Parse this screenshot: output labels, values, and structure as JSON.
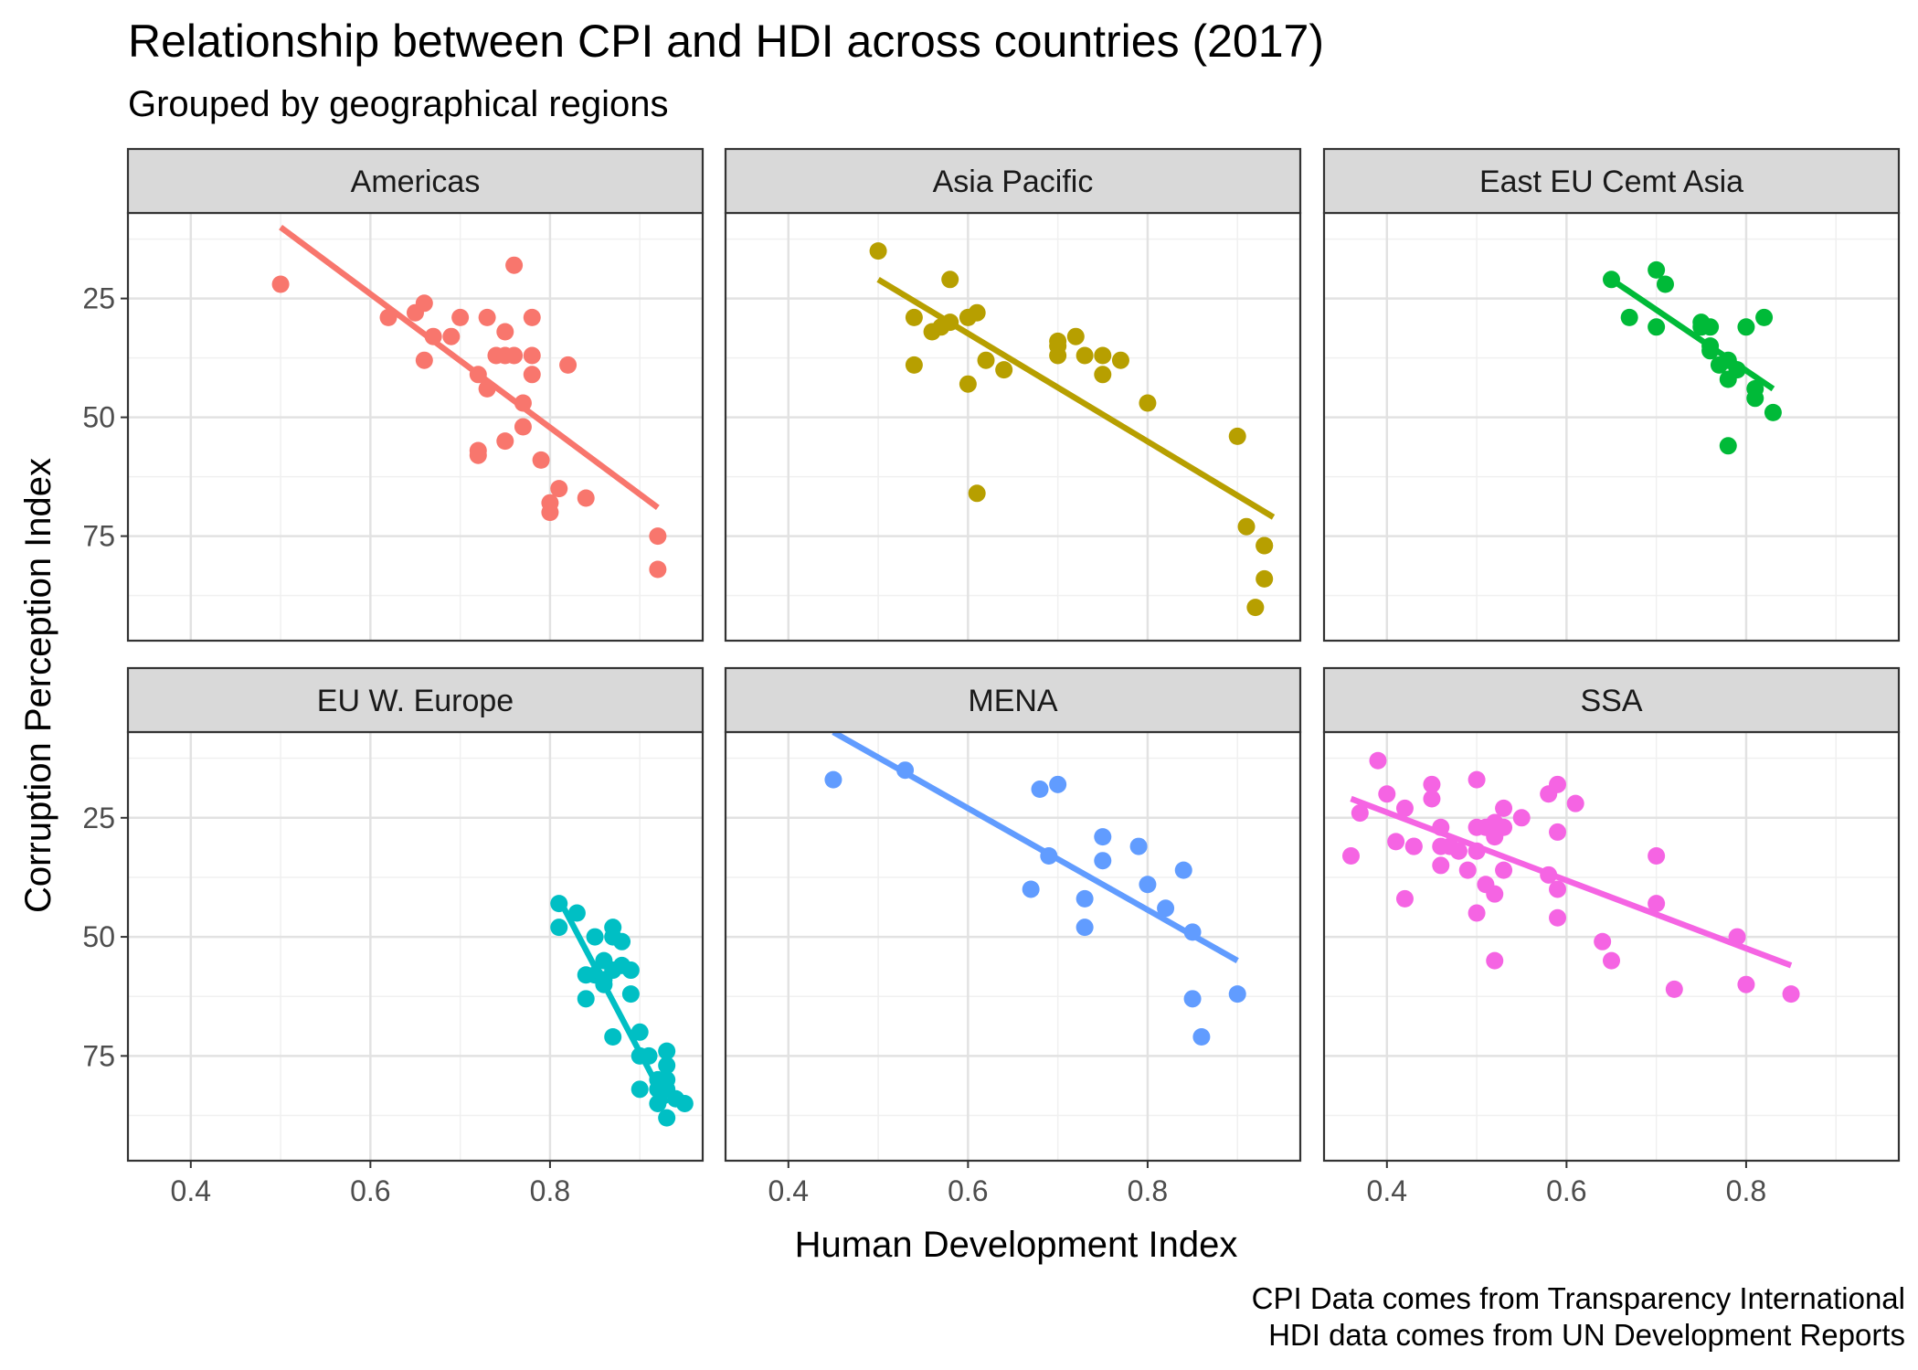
{
  "chart_data": {
    "type": "scatter",
    "title": "Relationship between CPI and HDI across countries (2017)",
    "subtitle": "Grouped by geographical regions",
    "xlabel": "Human Development Index",
    "ylabel": "Corruption Perception Index",
    "caption": [
      "CPI Data comes from Transparency International",
      "HDI data comes from UN Development Reports"
    ],
    "xlim": [
      0.33,
      0.97
    ],
    "ylim": [
      7,
      97
    ],
    "y_reversed": true,
    "x_ticks": [
      0.4,
      0.6,
      0.8
    ],
    "x_tick_labels": [
      "0.4",
      "0.6",
      "0.8"
    ],
    "y_ticks": [
      25,
      50,
      75
    ],
    "y_tick_labels": [
      "25",
      "50",
      "75"
    ],
    "grid": true,
    "facets": [
      {
        "name": "Americas",
        "color": "#F8766D",
        "line": [
          [
            0.5,
            10
          ],
          [
            0.92,
            69
          ]
        ],
        "points": [
          [
            0.5,
            22
          ],
          [
            0.62,
            29
          ],
          [
            0.65,
            28
          ],
          [
            0.66,
            26
          ],
          [
            0.66,
            38
          ],
          [
            0.67,
            33
          ],
          [
            0.69,
            33
          ],
          [
            0.7,
            29
          ],
          [
            0.72,
            41
          ],
          [
            0.72,
            57
          ],
          [
            0.72,
            58
          ],
          [
            0.73,
            44
          ],
          [
            0.73,
            29
          ],
          [
            0.74,
            37
          ],
          [
            0.75,
            37
          ],
          [
            0.75,
            55
          ],
          [
            0.75,
            32
          ],
          [
            0.76,
            37
          ],
          [
            0.76,
            18
          ],
          [
            0.77,
            47
          ],
          [
            0.77,
            52
          ],
          [
            0.78,
            41
          ],
          [
            0.78,
            29
          ],
          [
            0.78,
            37
          ],
          [
            0.79,
            59
          ],
          [
            0.8,
            68
          ],
          [
            0.8,
            70
          ],
          [
            0.81,
            65
          ],
          [
            0.82,
            39
          ],
          [
            0.84,
            67
          ],
          [
            0.92,
            75
          ],
          [
            0.92,
            82
          ]
        ]
      },
      {
        "name": "Asia Pacific",
        "color": "#B79F00",
        "line": [
          [
            0.5,
            21
          ],
          [
            0.94,
            71
          ]
        ],
        "points": [
          [
            0.5,
            15
          ],
          [
            0.54,
            29
          ],
          [
            0.54,
            39
          ],
          [
            0.56,
            32
          ],
          [
            0.57,
            31
          ],
          [
            0.58,
            30
          ],
          [
            0.58,
            21
          ],
          [
            0.6,
            29
          ],
          [
            0.6,
            43
          ],
          [
            0.61,
            28
          ],
          [
            0.61,
            66
          ],
          [
            0.62,
            38
          ],
          [
            0.64,
            40
          ],
          [
            0.7,
            37
          ],
          [
            0.7,
            35
          ],
          [
            0.7,
            34
          ],
          [
            0.72,
            33
          ],
          [
            0.73,
            37
          ],
          [
            0.75,
            41
          ],
          [
            0.75,
            37
          ],
          [
            0.77,
            38
          ],
          [
            0.8,
            47
          ],
          [
            0.9,
            54
          ],
          [
            0.91,
            73
          ],
          [
            0.93,
            77
          ],
          [
            0.93,
            84
          ],
          [
            0.93,
            77
          ],
          [
            0.92,
            90
          ]
        ]
      },
      {
        "name": "East EU Cemt Asia",
        "color": "#00BA38",
        "line": [
          [
            0.65,
            21
          ],
          [
            0.83,
            44
          ]
        ],
        "points": [
          [
            0.65,
            21
          ],
          [
            0.67,
            29
          ],
          [
            0.7,
            31
          ],
          [
            0.7,
            19
          ],
          [
            0.71,
            22
          ],
          [
            0.75,
            30
          ],
          [
            0.75,
            31
          ],
          [
            0.76,
            35
          ],
          [
            0.76,
            36
          ],
          [
            0.76,
            31
          ],
          [
            0.77,
            39
          ],
          [
            0.78,
            38
          ],
          [
            0.78,
            42
          ],
          [
            0.79,
            40
          ],
          [
            0.78,
            56
          ],
          [
            0.8,
            31
          ],
          [
            0.81,
            44
          ],
          [
            0.81,
            46
          ],
          [
            0.82,
            29
          ],
          [
            0.83,
            49
          ]
        ]
      },
      {
        "name": "EU W. Europe",
        "color": "#00BFC4",
        "line": [
          [
            0.81,
            42
          ],
          [
            0.93,
            85
          ]
        ],
        "points": [
          [
            0.81,
            43
          ],
          [
            0.81,
            48
          ],
          [
            0.83,
            45
          ],
          [
            0.84,
            58
          ],
          [
            0.84,
            63
          ],
          [
            0.85,
            50
          ],
          [
            0.85,
            58
          ],
          [
            0.86,
            59
          ],
          [
            0.86,
            55
          ],
          [
            0.86,
            60
          ],
          [
            0.87,
            48
          ],
          [
            0.87,
            71
          ],
          [
            0.87,
            57
          ],
          [
            0.87,
            50
          ],
          [
            0.88,
            51
          ],
          [
            0.88,
            56
          ],
          [
            0.89,
            57
          ],
          [
            0.89,
            62
          ],
          [
            0.9,
            70
          ],
          [
            0.9,
            75
          ],
          [
            0.9,
            82
          ],
          [
            0.91,
            75
          ],
          [
            0.92,
            85
          ],
          [
            0.92,
            82
          ],
          [
            0.92,
            80
          ],
          [
            0.93,
            77
          ],
          [
            0.93,
            80
          ],
          [
            0.93,
            74
          ],
          [
            0.93,
            88
          ],
          [
            0.93,
            82
          ],
          [
            0.94,
            84
          ],
          [
            0.95,
            85
          ]
        ]
      },
      {
        "name": "MENA",
        "color": "#619CFF",
        "line": [
          [
            0.45,
            7
          ],
          [
            0.9,
            55
          ]
        ],
        "points": [
          [
            0.45,
            17
          ],
          [
            0.53,
            15
          ],
          [
            0.67,
            40
          ],
          [
            0.68,
            19
          ],
          [
            0.69,
            33
          ],
          [
            0.7,
            18
          ],
          [
            0.73,
            42
          ],
          [
            0.73,
            48
          ],
          [
            0.75,
            34
          ],
          [
            0.75,
            29
          ],
          [
            0.79,
            31
          ],
          [
            0.8,
            39
          ],
          [
            0.82,
            44
          ],
          [
            0.84,
            36
          ],
          [
            0.85,
            49
          ],
          [
            0.85,
            63
          ],
          [
            0.86,
            71
          ],
          [
            0.9,
            62
          ]
        ]
      },
      {
        "name": "SSA",
        "color": "#F564E3",
        "line": [
          [
            0.36,
            21
          ],
          [
            0.85,
            56
          ]
        ],
        "points": [
          [
            0.36,
            33
          ],
          [
            0.37,
            24
          ],
          [
            0.39,
            13
          ],
          [
            0.4,
            20
          ],
          [
            0.41,
            30
          ],
          [
            0.42,
            23
          ],
          [
            0.42,
            42
          ],
          [
            0.43,
            31
          ],
          [
            0.43,
            31
          ],
          [
            0.45,
            18
          ],
          [
            0.45,
            21
          ],
          [
            0.46,
            27
          ],
          [
            0.46,
            31
          ],
          [
            0.46,
            35
          ],
          [
            0.47,
            31
          ],
          [
            0.48,
            32
          ],
          [
            0.49,
            36
          ],
          [
            0.5,
            32
          ],
          [
            0.5,
            27
          ],
          [
            0.5,
            45
          ],
          [
            0.5,
            17
          ],
          [
            0.51,
            39
          ],
          [
            0.51,
            27
          ],
          [
            0.52,
            29
          ],
          [
            0.52,
            41
          ],
          [
            0.52,
            26
          ],
          [
            0.52,
            55
          ],
          [
            0.53,
            27
          ],
          [
            0.53,
            23
          ],
          [
            0.53,
            36
          ],
          [
            0.55,
            25
          ],
          [
            0.58,
            37
          ],
          [
            0.58,
            20
          ],
          [
            0.59,
            18
          ],
          [
            0.59,
            28
          ],
          [
            0.59,
            46
          ],
          [
            0.59,
            40
          ],
          [
            0.61,
            22
          ],
          [
            0.64,
            51
          ],
          [
            0.65,
            55
          ],
          [
            0.7,
            33
          ],
          [
            0.7,
            43
          ],
          [
            0.72,
            61
          ],
          [
            0.79,
            50
          ],
          [
            0.8,
            60
          ],
          [
            0.85,
            62
          ]
        ]
      }
    ]
  }
}
